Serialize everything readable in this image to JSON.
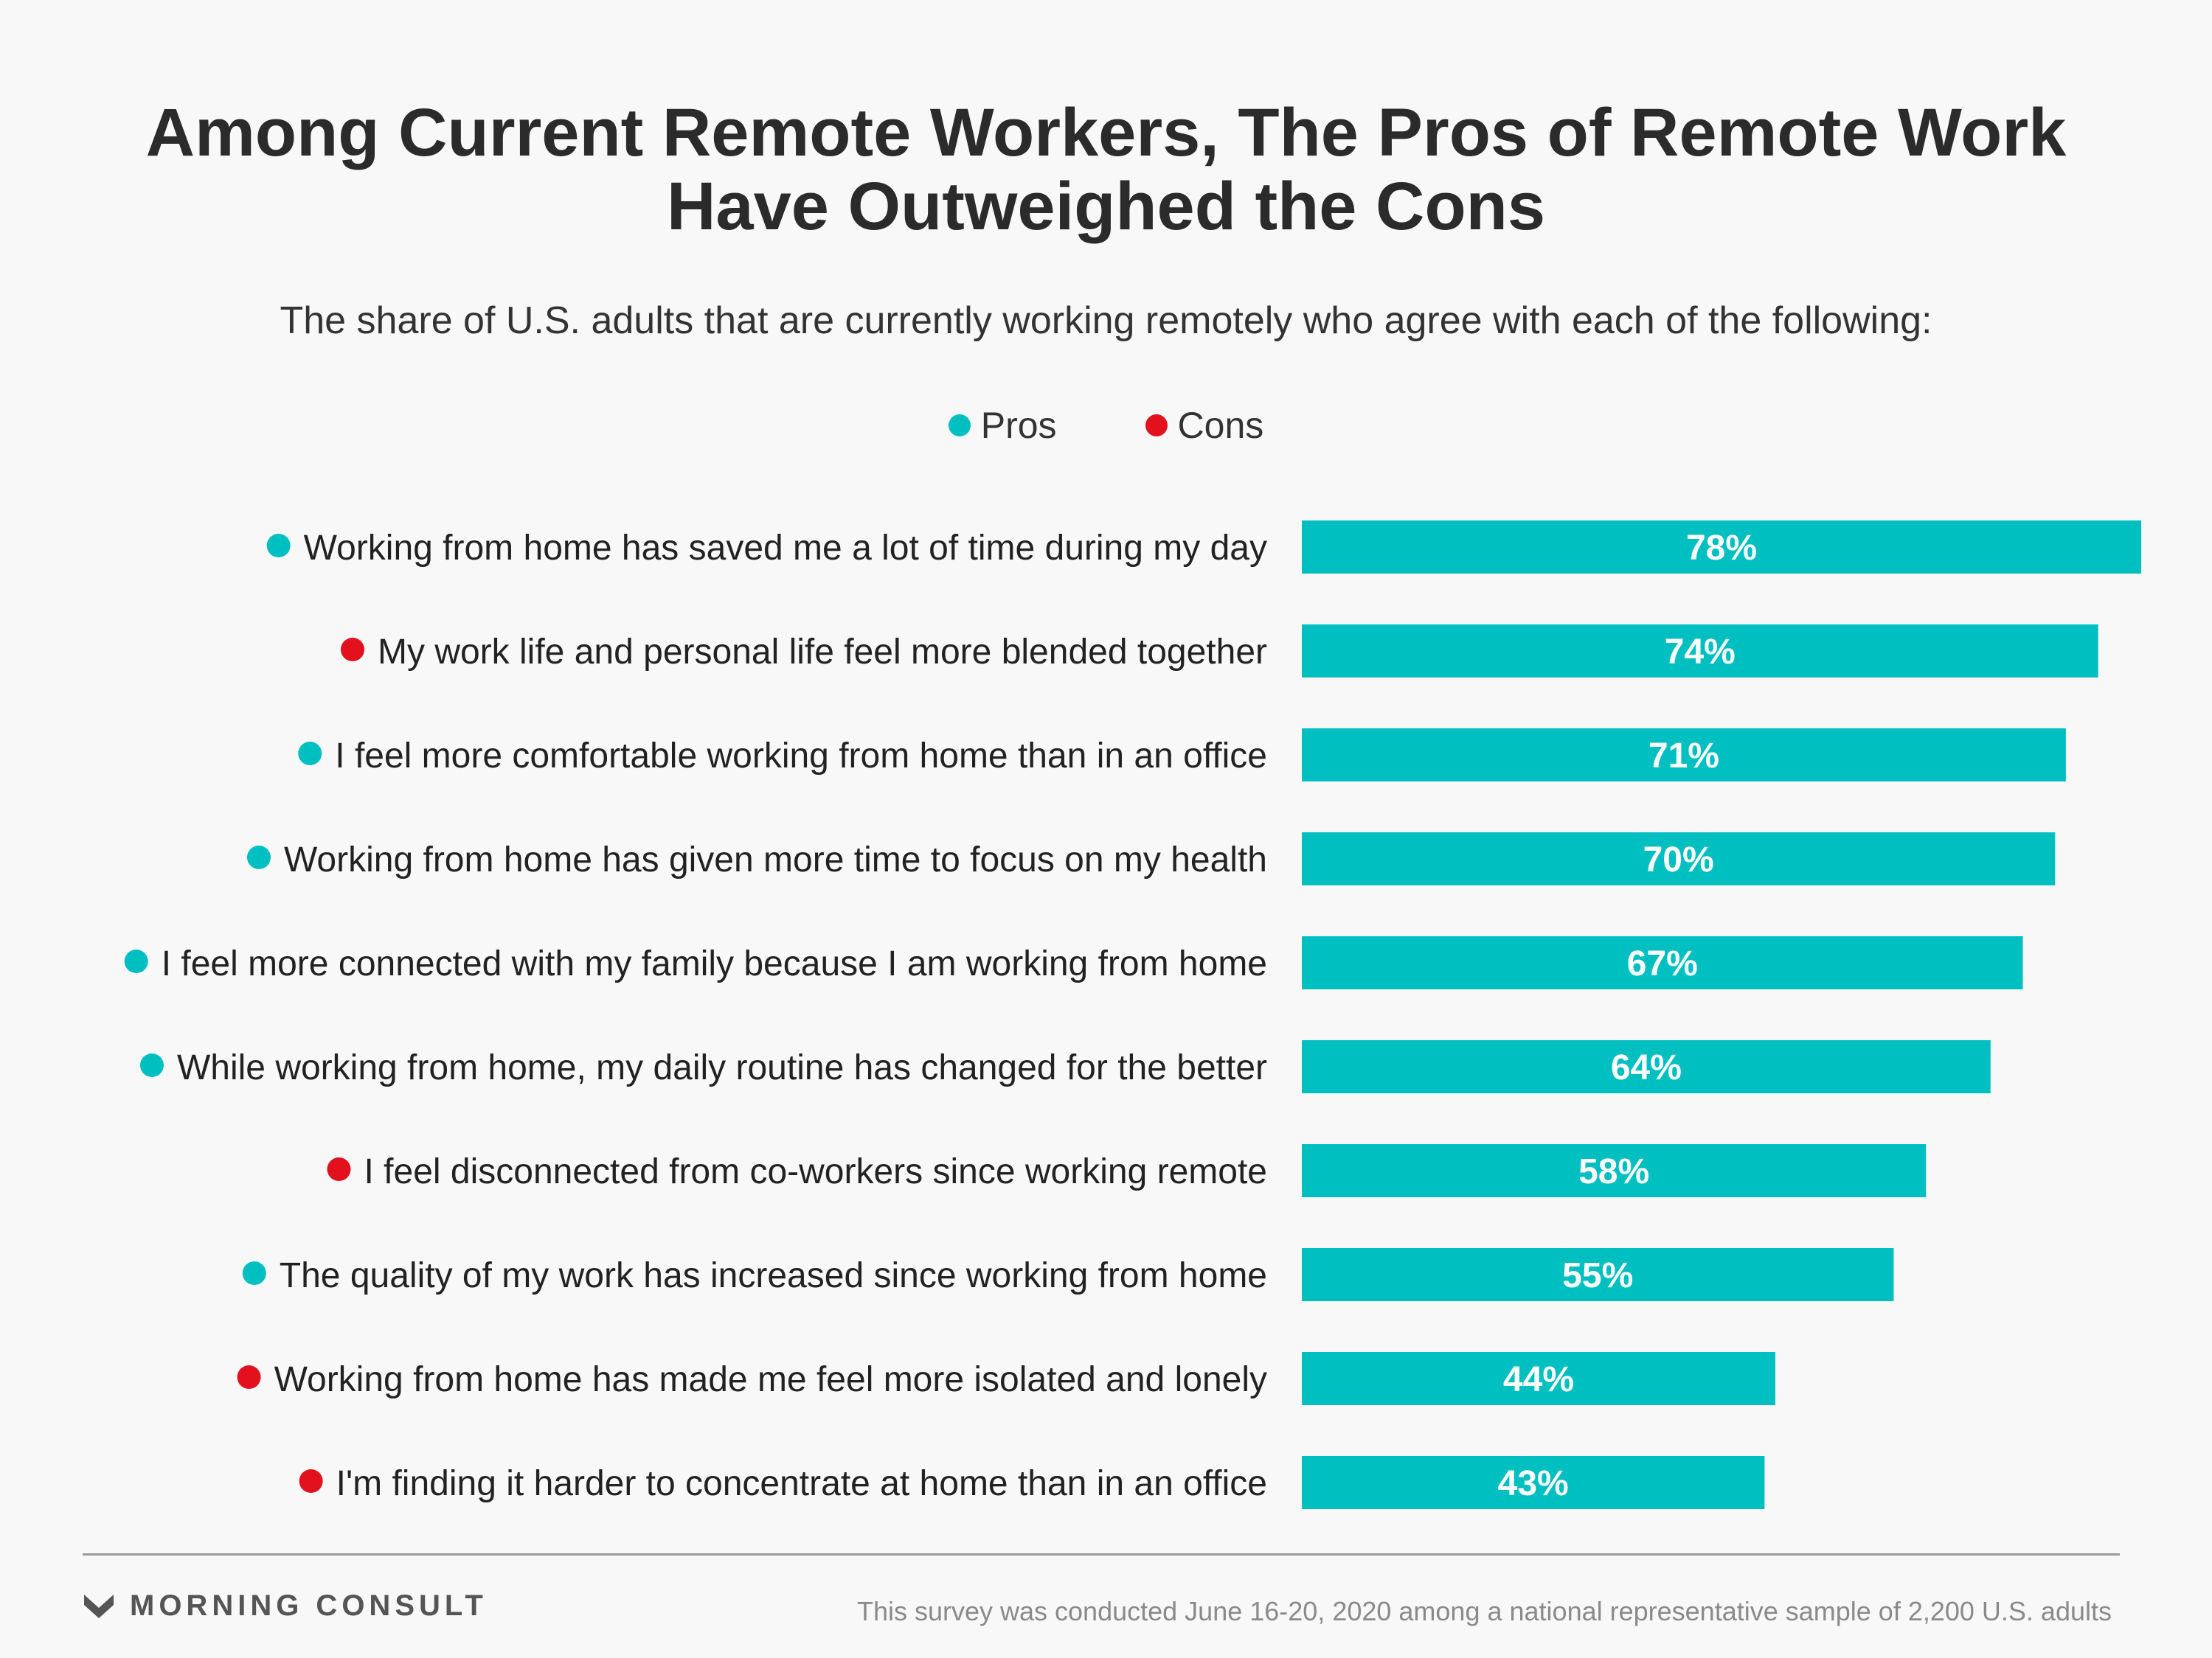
{
  "title_line1": "Among Current Remote Workers, The Pros of Remote Work",
  "title_line2": "Have Outweighed the Cons",
  "subtitle": "The share of U.S. adults that are currently working remotely who agree with each of the following:",
  "legend": [
    {
      "label": "Pros",
      "color": "#00bfc1"
    },
    {
      "label": "Cons",
      "color": "#e3101e"
    }
  ],
  "colors": {
    "bar": "#00bfc1",
    "pros": "#00bfc1",
    "cons": "#e3101e",
    "text": "#222222"
  },
  "chart_data": {
    "type": "bar",
    "orientation": "horizontal",
    "categories": [
      "Working from home has saved me a lot of time during my day",
      "My work life and personal life feel more blended together",
      "I feel more comfortable working from home than in an office",
      "Working from home has given more time to focus on my health",
      "I feel more connected with my family because I am working from home",
      "While working from home, my daily routine has changed for the better",
      "I feel disconnected from co-workers since working remote",
      "The quality of my work has increased since working from home",
      "Working from home has made me feel more isolated and lonely",
      "I'm finding it harder to concentrate at home than in an office"
    ],
    "groups": [
      "Pros",
      "Cons",
      "Pros",
      "Pros",
      "Pros",
      "Pros",
      "Cons",
      "Pros",
      "Cons",
      "Cons"
    ],
    "values": [
      78,
      74,
      71,
      70,
      67,
      64,
      58,
      55,
      44,
      43
    ],
    "value_labels": [
      "78%",
      "74%",
      "71%",
      "70%",
      "67%",
      "64%",
      "58%",
      "55%",
      "44%",
      "43%"
    ],
    "xlim": [
      0,
      78
    ],
    "grid": false,
    "legend_position": "top-center"
  },
  "footer": {
    "logo": "MORNING CONSULT",
    "note": "This survey was conducted June 16-20, 2020 among a national representative sample of 2,200 U.S. adults"
  }
}
